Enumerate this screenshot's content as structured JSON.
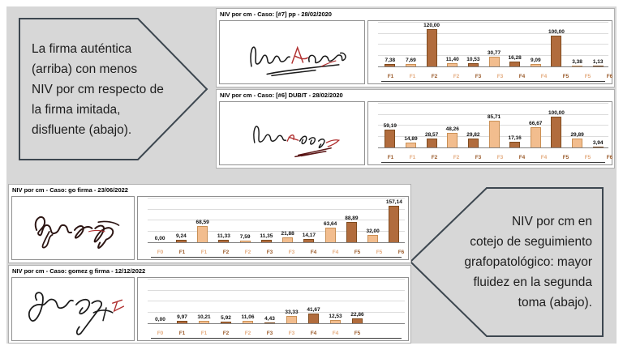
{
  "slide": {
    "callout_left_text": "La firma auténtica\n(arriba) con menos\nNIV por cm respecto de\nla firma imitada,\ndisfluente (abajo).",
    "callout_right_text": "NIV por cm en\ncotejo de seguimiento\ngrafopatológico: mayor\nfluidez en la segunda\ntoma (abajo)."
  },
  "colors": {
    "slide_background": "#d7d7d7",
    "callout_border": "#3d4750",
    "bar_dark_fill": "#b16c3d",
    "bar_dark_border": "#7e4a1e",
    "bar_light_fill": "#f2bd8e",
    "bar_light_border": "#c98f54",
    "category_dark_text": "#9a5b2b",
    "category_light_text": "#e4ac80",
    "signature_red_accent": "#b03030"
  },
  "chart_data": [
    {
      "type": "bar",
      "title": "NIV por cm - Caso: [#7] pp - 28/02/2020",
      "categories": [
        "F1",
        "F1",
        "F2",
        "F2",
        "F3",
        "F3",
        "F4",
        "F4",
        "F5",
        "F5",
        "F6"
      ],
      "values": [
        7.38,
        7.69,
        120.0,
        11.4,
        10.53,
        30.77,
        16.28,
        9.09,
        100.0,
        3.38,
        1.13
      ],
      "labels": [
        "7,38",
        "7,69",
        "120,00",
        "11,40",
        "10,53",
        "30,77",
        "16,28",
        "9,09",
        "100,00",
        "3,38",
        "1,13"
      ],
      "shades": [
        "dark",
        "light",
        "dark",
        "light",
        "dark",
        "light",
        "dark",
        "light",
        "dark",
        "light",
        "dark"
      ],
      "xlabel": "",
      "ylabel": "",
      "ylim": [
        0,
        150
      ],
      "grid": true,
      "legend": false
    },
    {
      "type": "bar",
      "title": "NIV por cm - Caso: [#6] DUBIT - 28/02/2020",
      "categories": [
        "F1",
        "F1",
        "F2",
        "F2",
        "F3",
        "F3",
        "F4",
        "F4",
        "F5",
        "F5",
        "F6"
      ],
      "values": [
        59.19,
        14.89,
        28.57,
        48.26,
        29.82,
        85.71,
        17.16,
        66.67,
        100.0,
        29.89,
        3.94
      ],
      "labels": [
        "59,19",
        "14,89",
        "28,57",
        "48,26",
        "29,82",
        "85,71",
        "17,16",
        "66,67",
        "100,00",
        "29,89",
        "3,94"
      ],
      "shades": [
        "dark",
        "light",
        "dark",
        "light",
        "dark",
        "light",
        "dark",
        "light",
        "dark",
        "light",
        "dark"
      ],
      "xlabel": "",
      "ylabel": "",
      "ylim": [
        0,
        150
      ],
      "grid": true,
      "legend": false
    },
    {
      "type": "bar",
      "title": "NIV por cm - Caso: go firma - 23/06/2022",
      "categories": [
        "F0",
        "F1",
        "F1",
        "F2",
        "F2",
        "F3",
        "F3",
        "F4",
        "F4",
        "F5",
        "F5",
        "F6"
      ],
      "values": [
        0.0,
        9.24,
        68.59,
        11.33,
        7.59,
        11.35,
        21.88,
        14.17,
        63.64,
        88.89,
        32.0,
        157.14
      ],
      "labels": [
        "0,00",
        "9,24",
        "68,59",
        "11,33",
        "7,59",
        "11,35",
        "21,88",
        "14,17",
        "63,64",
        "88,89",
        "32,00",
        "157,14"
      ],
      "shades": [
        "light",
        "dark",
        "light",
        "dark",
        "light",
        "dark",
        "light",
        "dark",
        "light",
        "dark",
        "light",
        "dark"
      ],
      "xlabel": "",
      "ylabel": "",
      "ylim": [
        0,
        200
      ],
      "grid": true,
      "legend": false
    },
    {
      "type": "bar",
      "title": "NIV por cm - Caso: gomez g firma - 12/12/2022",
      "categories": [
        "F0",
        "F1",
        "F1",
        "F2",
        "F2",
        "F3",
        "F3",
        "F4",
        "F4",
        "F5"
      ],
      "values": [
        0.0,
        9.97,
        10.21,
        5.92,
        11.06,
        4.43,
        33.33,
        41.67,
        12.53,
        22.86
      ],
      "labels": [
        "0,00",
        "9,97",
        "10,21",
        "5,92",
        "11,06",
        "4,43",
        "33,33",
        "41,67",
        "12,53",
        "22,86"
      ],
      "shades": [
        "light",
        "dark",
        "light",
        "dark",
        "light",
        "dark",
        "light",
        "dark",
        "light",
        "dark"
      ],
      "xlabel": "",
      "ylabel": "",
      "ylim": [
        0,
        200
      ],
      "grid": true,
      "legend": false
    }
  ]
}
